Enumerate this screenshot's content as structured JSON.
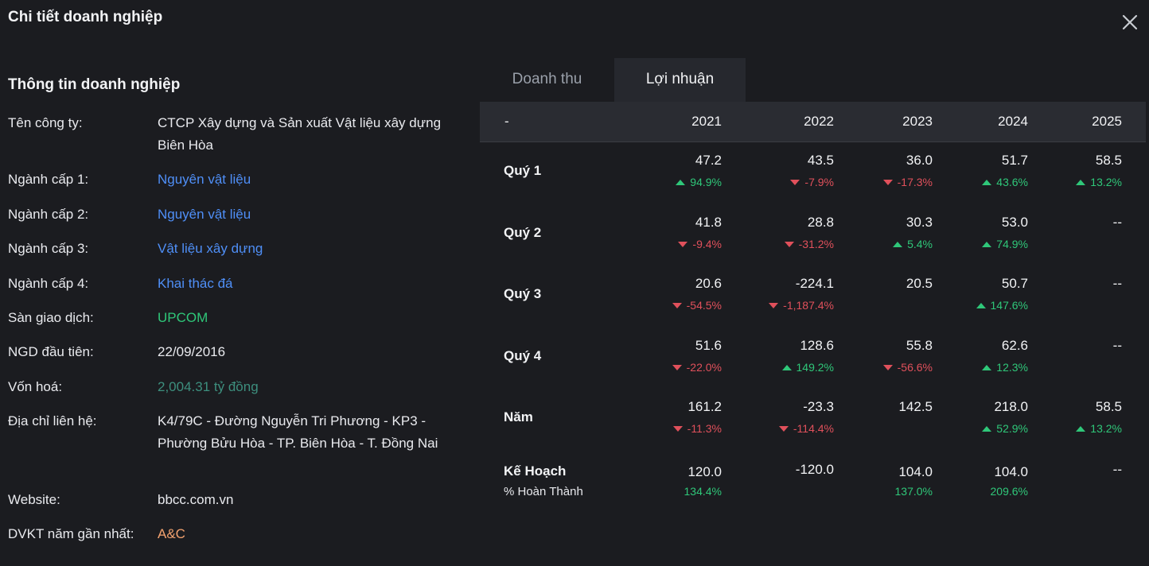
{
  "dialog": {
    "title": "Chi tiết doanh nghiệp",
    "close_icon": "close-icon"
  },
  "info": {
    "heading": "Thông tin doanh nghiệp",
    "company_label": "Tên công ty:",
    "company_value": "CTCP Xây dựng và Sản xuất Vật liệu xây dựng Biên Hòa",
    "sector1_label": "Ngành cấp 1:",
    "sector1_value": "Nguyên vật liệu",
    "sector2_label": "Ngành cấp 2:",
    "sector2_value": "Nguyên vật liệu",
    "sector3_label": "Ngành cấp 3:",
    "sector3_value": "Vật liệu xây dựng",
    "sector4_label": "Ngành cấp 4:",
    "sector4_value": "Khai thác đá",
    "exchange_label": "Sàn giao dịch:",
    "exchange_value": "UPCOM",
    "first_trade_label": "NGD đầu tiên:",
    "first_trade_value": "22/09/2016",
    "market_cap_label": "Vốn hoá:",
    "market_cap_value": "2,004.31 tỷ đồng",
    "address_label": "Địa chỉ liên hệ:",
    "address_value": "K4/79C - Đường Nguyễn Tri Phương - KP3 - Phường Bửu Hòa - TP. Biên Hòa - T. Đồng Nai",
    "website_label": "Website:",
    "website_value": "bbcc.com.vn",
    "auditor_label": "DVKT năm gần nhất:",
    "auditor_value": "A&C"
  },
  "tabs": {
    "revenue": "Doanh thu",
    "profit": "Lợi nhuận"
  },
  "table": {
    "first_header": "-",
    "years": [
      "2021",
      "2022",
      "2023",
      "2024",
      "2025"
    ],
    "rows": [
      {
        "label": "Quý 1",
        "values": [
          "47.2",
          "43.5",
          "36.0",
          "51.7",
          "58.5"
        ],
        "changes": [
          "94.9%",
          "-7.9%",
          "-17.3%",
          "43.6%",
          "13.2%"
        ]
      },
      {
        "label": "Quý 2",
        "values": [
          "41.8",
          "28.8",
          "30.3",
          "53.0",
          "--"
        ],
        "changes": [
          "-9.4%",
          "-31.2%",
          "5.4%",
          "74.9%",
          ""
        ]
      },
      {
        "label": "Quý 3",
        "values": [
          "20.6",
          "-224.1",
          "20.5",
          "50.7",
          "--"
        ],
        "changes": [
          "-54.5%",
          "-1,187.4%",
          "",
          "147.6%",
          ""
        ]
      },
      {
        "label": "Quý 4",
        "values": [
          "51.6",
          "128.6",
          "55.8",
          "62.6",
          "--"
        ],
        "changes": [
          "-22.0%",
          "149.2%",
          "-56.6%",
          "12.3%",
          ""
        ]
      },
      {
        "label": "Năm",
        "values": [
          "161.2",
          "-23.3",
          "142.5",
          "218.0",
          "58.5"
        ],
        "changes": [
          "-11.3%",
          "-114.4%",
          "",
          "52.9%",
          "13.2%"
        ]
      }
    ],
    "plan": {
      "label": "Kế Hoạch",
      "sub_label": "% Hoàn Thành",
      "values": [
        "120.0",
        "-120.0",
        "104.0",
        "104.0",
        "--"
      ],
      "completion": [
        "134.4%",
        "",
        "137.0%",
        "209.6%",
        ""
      ]
    }
  }
}
